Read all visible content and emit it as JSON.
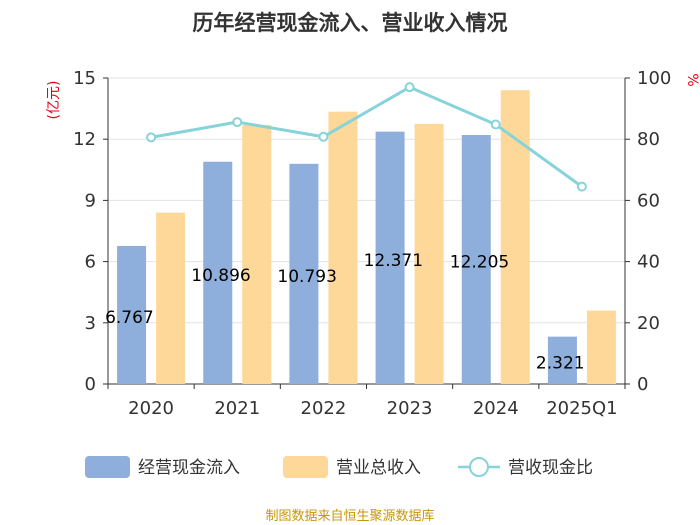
{
  "chart_data": {
    "type": "bar",
    "title": "历年经营现金流入、营业收入情况",
    "categories": [
      "2020",
      "2021",
      "2022",
      "2023",
      "2024",
      "2025Q1"
    ],
    "y_left": {
      "unit": "(亿元)",
      "ylim": [
        0,
        15
      ],
      "ticks": [
        "0",
        "3",
        "6",
        "9",
        "12",
        "15"
      ]
    },
    "y_right": {
      "unit": "%",
      "ylim": [
        0,
        100
      ],
      "ticks": [
        "0",
        "20",
        "40",
        "60",
        "80",
        "100"
      ]
    },
    "series": [
      {
        "name": "经营现金流入",
        "type": "bar",
        "axis": "left",
        "color": "#8eaedc",
        "values": [
          6.767,
          10.896,
          10.793,
          12.371,
          12.205,
          2.321
        ],
        "labels": [
          "6.767",
          "10.896",
          "10.793",
          "12.371",
          "12.205",
          "2.321"
        ]
      },
      {
        "name": "营业总收入",
        "type": "bar",
        "axis": "left",
        "color": "#fdd899",
        "values": [
          8.4,
          12.7,
          13.35,
          12.75,
          14.4,
          3.6
        ]
      },
      {
        "name": "营收现金比",
        "type": "line",
        "axis": "right",
        "color": "#86d4d9",
        "values": [
          80.6,
          85.6,
          80.8,
          97.0,
          84.8,
          64.5
        ]
      }
    ],
    "grid": true,
    "legend_position": "bottom"
  },
  "footer": {
    "source": "制图数据来自恒生聚源数据库"
  }
}
